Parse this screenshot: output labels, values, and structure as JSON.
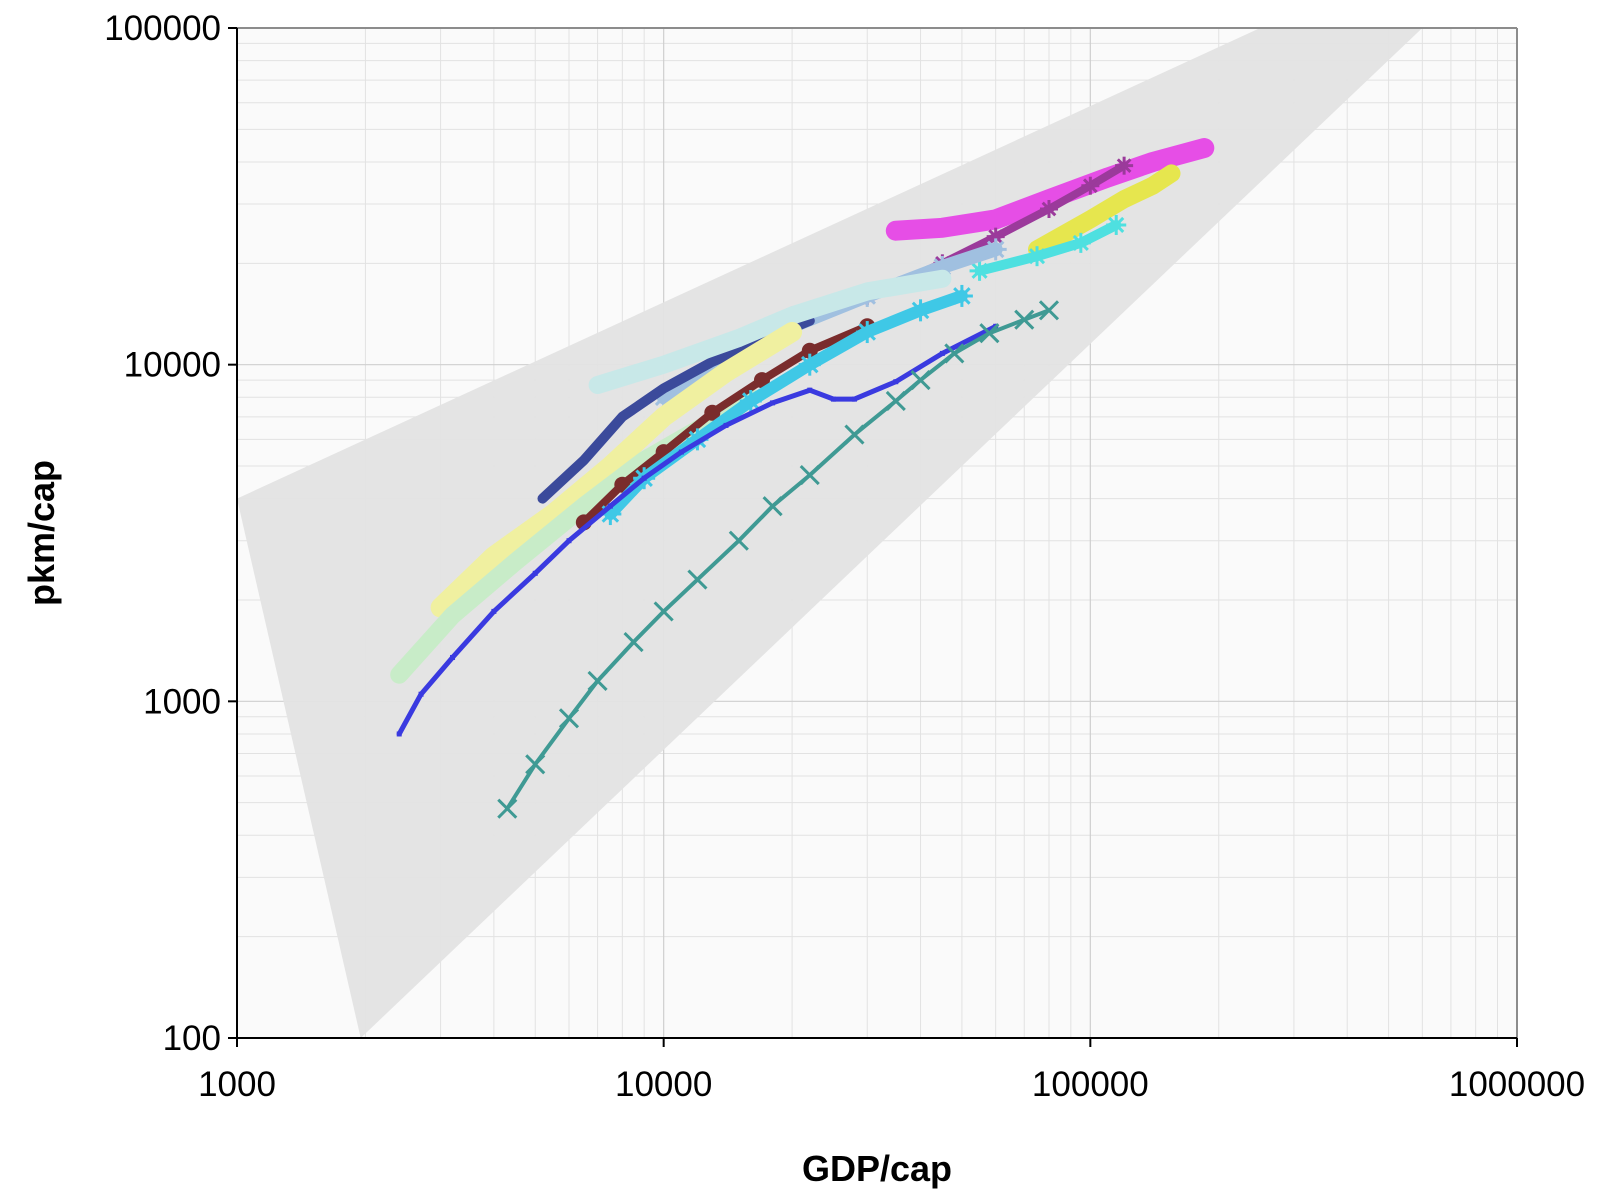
{
  "chart_data": {
    "type": "scatter",
    "xlabel": "GDP/cap",
    "ylabel": "pkm/cap",
    "xscale": "log",
    "yscale": "log",
    "xlim": [
      1000,
      1000000
    ],
    "ylim": [
      100,
      100000
    ],
    "x_ticks": [
      "1000",
      "10000",
      "100000",
      "1000000"
    ],
    "y_ticks": [
      "100",
      "1000",
      "10000",
      "100000"
    ],
    "grid": true,
    "legend": "none",
    "band": {
      "color": "#e3e3e3",
      "polygon": [
        [
          1000,
          4000
        ],
        [
          250000,
          100000
        ],
        [
          600000,
          100000
        ],
        [
          1950,
          100
        ]
      ]
    },
    "series": [
      {
        "color": "#e64ee6",
        "marker": "square",
        "width": 20,
        "points": [
          [
            35000,
            25000
          ],
          [
            45000,
            25500
          ],
          [
            60000,
            27000
          ],
          [
            80000,
            31000
          ],
          [
            110000,
            36000
          ],
          [
            140000,
            40000
          ],
          [
            185000,
            44000
          ]
        ]
      },
      {
        "color": "#9b3a9b",
        "marker": "star",
        "width": 8,
        "points": [
          [
            20000,
            14000
          ],
          [
            30000,
            16000
          ],
          [
            45000,
            20000
          ],
          [
            60000,
            24000
          ],
          [
            80000,
            29000
          ],
          [
            100000,
            34000
          ],
          [
            120000,
            39000
          ]
        ]
      },
      {
        "color": "#e6e64e",
        "marker": "square",
        "width": 18,
        "points": [
          [
            75000,
            22000
          ],
          [
            100000,
            27000
          ],
          [
            120000,
            31000
          ],
          [
            140000,
            34000
          ],
          [
            155000,
            37000
          ]
        ]
      },
      {
        "color": "#4ee0e0",
        "marker": "star",
        "width": 10,
        "points": [
          [
            55000,
            19000
          ],
          [
            75000,
            21000
          ],
          [
            95000,
            23000
          ],
          [
            115000,
            26000
          ]
        ]
      },
      {
        "color": "#a0c0e0",
        "marker": "star",
        "width": 14,
        "points": [
          [
            10000,
            8000
          ],
          [
            14000,
            10000
          ],
          [
            20000,
            13000
          ],
          [
            30000,
            16000
          ],
          [
            45000,
            19500
          ],
          [
            60000,
            22000
          ]
        ]
      },
      {
        "color": "#3b4a9b",
        "marker": "line",
        "width": 10,
        "points": [
          [
            5200,
            4000
          ],
          [
            6500,
            5200
          ],
          [
            8000,
            7000
          ],
          [
            10000,
            8500
          ],
          [
            13000,
            10200
          ],
          [
            17000,
            11800
          ],
          [
            22000,
            13500
          ]
        ]
      },
      {
        "color": "#c8e8e8",
        "marker": "square",
        "width": 18,
        "points": [
          [
            7000,
            8700
          ],
          [
            10000,
            10000
          ],
          [
            15000,
            12000
          ],
          [
            20000,
            14000
          ],
          [
            30000,
            16500
          ],
          [
            45000,
            18000
          ]
        ]
      },
      {
        "color": "#f0f0a0",
        "marker": "square",
        "width": 20,
        "points": [
          [
            3000,
            1900
          ],
          [
            4000,
            2700
          ],
          [
            5500,
            3600
          ],
          [
            7500,
            5000
          ],
          [
            10000,
            7000
          ],
          [
            14000,
            9500
          ],
          [
            20000,
            12500
          ]
        ]
      },
      {
        "color": "#c8ecc8",
        "marker": "square",
        "width": 18,
        "points": [
          [
            2400,
            1200
          ],
          [
            3200,
            1800
          ],
          [
            4500,
            2600
          ],
          [
            6500,
            3800
          ],
          [
            9000,
            5200
          ],
          [
            13000,
            6800
          ],
          [
            16000,
            8000
          ]
        ]
      },
      {
        "color": "#7a2c2c",
        "marker": "circle",
        "width": 8,
        "points": [
          [
            6500,
            3400
          ],
          [
            8000,
            4400
          ],
          [
            10000,
            5500
          ],
          [
            13000,
            7200
          ],
          [
            17000,
            9000
          ],
          [
            22000,
            11000
          ],
          [
            30000,
            13000
          ]
        ]
      },
      {
        "color": "#3fc8e6",
        "marker": "star",
        "width": 12,
        "points": [
          [
            7500,
            3600
          ],
          [
            9000,
            4600
          ],
          [
            12000,
            6000
          ],
          [
            16000,
            7800
          ],
          [
            22000,
            10000
          ],
          [
            30000,
            12500
          ],
          [
            40000,
            14500
          ],
          [
            50000,
            16000
          ]
        ]
      },
      {
        "color": "#3a3ae0",
        "marker": "square",
        "width": 5,
        "points": [
          [
            2400,
            800
          ],
          [
            2700,
            1050
          ],
          [
            3200,
            1350
          ],
          [
            4000,
            1850
          ],
          [
            5000,
            2400
          ],
          [
            6000,
            3000
          ],
          [
            7500,
            3800
          ],
          [
            9000,
            4600
          ],
          [
            11000,
            5500
          ],
          [
            14000,
            6600
          ],
          [
            18000,
            7700
          ],
          [
            22000,
            8400
          ],
          [
            25000,
            7900
          ],
          [
            28000,
            7900
          ],
          [
            35000,
            8900
          ],
          [
            45000,
            10800
          ],
          [
            60000,
            13000
          ]
        ]
      },
      {
        "color": "#3f9a94",
        "marker": "x",
        "width": 4,
        "points": [
          [
            4300,
            480
          ],
          [
            5000,
            650
          ],
          [
            6000,
            890
          ],
          [
            7000,
            1150
          ],
          [
            8500,
            1500
          ],
          [
            10000,
            1850
          ],
          [
            12000,
            2300
          ],
          [
            15000,
            3000
          ],
          [
            18000,
            3800
          ],
          [
            22000,
            4700
          ],
          [
            28000,
            6200
          ],
          [
            35000,
            7800
          ],
          [
            40000,
            9000
          ],
          [
            48000,
            10800
          ],
          [
            58000,
            12400
          ],
          [
            70000,
            13600
          ],
          [
            80000,
            14500
          ]
        ]
      }
    ]
  }
}
